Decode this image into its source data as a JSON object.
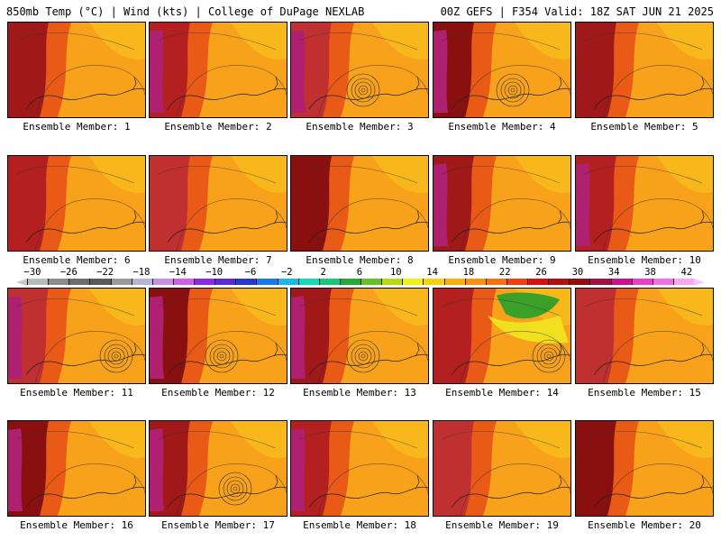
{
  "header": {
    "left": "850mb Temp (°C) | Wind (kts) | College of DuPage NEXLAB",
    "right": "00Z GEFS | F354 Valid: 18Z SAT JUN 21 2025"
  },
  "panels": [
    {
      "label": "Ensemble Member: 1"
    },
    {
      "label": "Ensemble Member: 2"
    },
    {
      "label": "Ensemble Member: 3"
    },
    {
      "label": "Ensemble Member: 4"
    },
    {
      "label": "Ensemble Member: 5"
    },
    {
      "label": "Ensemble Member: 6"
    },
    {
      "label": "Ensemble Member: 7"
    },
    {
      "label": "Ensemble Member: 8"
    },
    {
      "label": "Ensemble Member: 9"
    },
    {
      "label": "Ensemble Member: 10"
    },
    {
      "label": "Ensemble Member: 11"
    },
    {
      "label": "Ensemble Member: 12"
    },
    {
      "label": "Ensemble Member: 13"
    },
    {
      "label": "Ensemble Member: 14"
    },
    {
      "label": "Ensemble Member: 15"
    },
    {
      "label": "Ensemble Member: 16"
    },
    {
      "label": "Ensemble Member: 17"
    },
    {
      "label": "Ensemble Member: 18"
    },
    {
      "label": "Ensemble Member: 19"
    },
    {
      "label": "Ensemble Member: 20"
    }
  ],
  "colorbar": {
    "labels": [
      "−30",
      "−26",
      "−22",
      "−18",
      "−14",
      "−10",
      "−6",
      "−2",
      "2",
      "6",
      "10",
      "14",
      "18",
      "22",
      "26",
      "30",
      "34",
      "38",
      "42"
    ],
    "colors": [
      "#b8bcb8",
      "#8c8c8c",
      "#6e6e6e",
      "#5a5a5a",
      "#9a9a9a",
      "#b4b4d4",
      "#c890e0",
      "#d060e8",
      "#8a2be2",
      "#5a2ad8",
      "#2838c8",
      "#1a78e8",
      "#18b8e8",
      "#18d8b8",
      "#18c878",
      "#28a838",
      "#68c028",
      "#b8d818",
      "#f0f018",
      "#f8d010",
      "#f8b010",
      "#f89010",
      "#f87010",
      "#f04010",
      "#d81010",
      "#b01010",
      "#901010",
      "#a01040",
      "#c81090",
      "#e840c8",
      "#f070e8",
      "#f8a8f0"
    ]
  }
}
